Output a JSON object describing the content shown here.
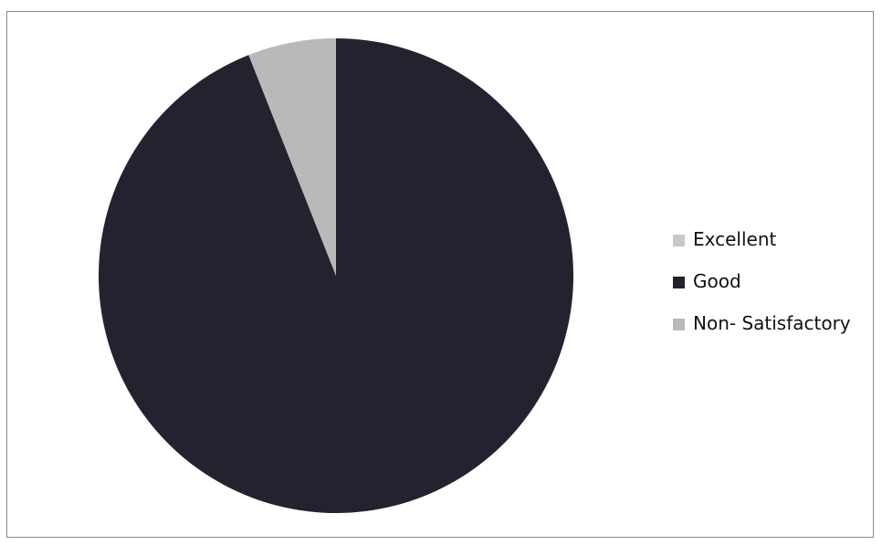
{
  "chart_data": {
    "type": "pie",
    "title": "",
    "start_angle_deg": 0,
    "direction": "clockwise",
    "slices": [
      {
        "name": "Excellent",
        "value": 0,
        "color": "#c9c9c9"
      },
      {
        "name": "Good",
        "value": 94,
        "color": "#22222e"
      },
      {
        "name": "Non- Satisfactory",
        "value": 6,
        "color": "#b9b9b9"
      }
    ],
    "legend": {
      "position": "right",
      "items": [
        "Excellent",
        "Good",
        "Non- Satisfactory"
      ]
    }
  }
}
